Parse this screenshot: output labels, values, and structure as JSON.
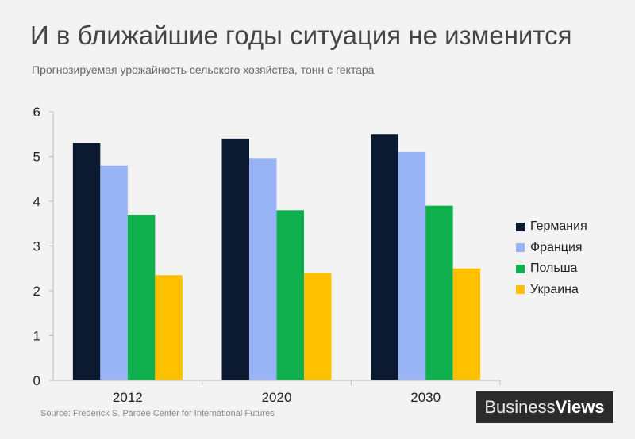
{
  "title": "И в ближайшие годы ситуация не изменится",
  "subtitle": "Прогнозируемая урожайность сельского хозяйства, тонн с гектара",
  "source": "Source: Frederick S. Pardee Center for International Futures",
  "logo": {
    "part1": "Business",
    "part2": "Views"
  },
  "chart_data": {
    "type": "bar",
    "categories": [
      "2012",
      "2020",
      "2030"
    ],
    "series": [
      {
        "name": "Германия",
        "color": "#0b1a30",
        "values": [
          5.3,
          5.4,
          5.5
        ]
      },
      {
        "name": "Франция",
        "color": "#99b3f7",
        "values": [
          4.8,
          4.95,
          5.1
        ]
      },
      {
        "name": "Польша",
        "color": "#10b04e",
        "values": [
          3.7,
          3.8,
          3.9
        ]
      },
      {
        "name": "Украина",
        "color": "#ffc000",
        "values": [
          2.35,
          2.4,
          2.5
        ]
      }
    ],
    "ylim": [
      0,
      6
    ],
    "yticks": [
      "0",
      "1",
      "2",
      "3",
      "4",
      "5",
      "6"
    ],
    "legend_position": "right",
    "grid": false
  }
}
